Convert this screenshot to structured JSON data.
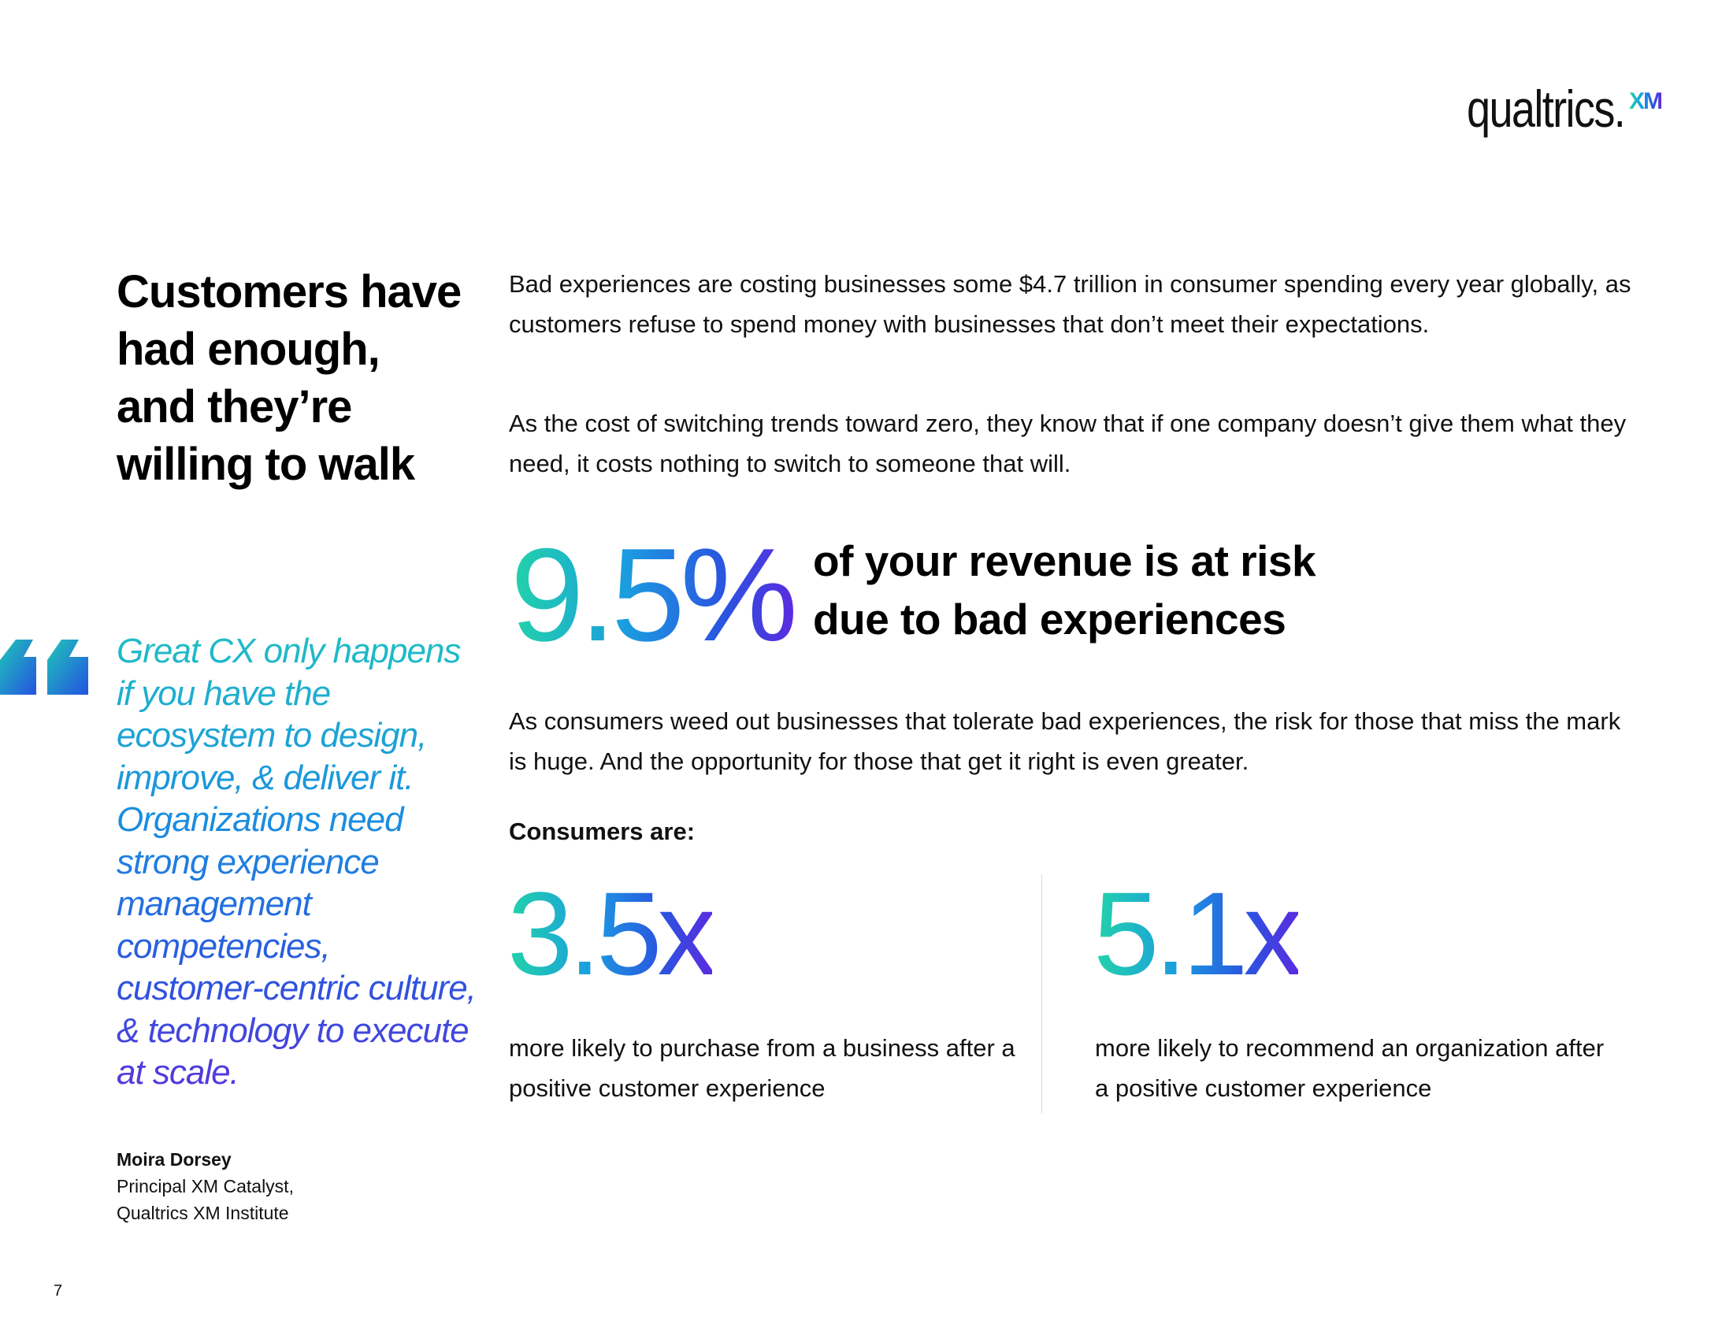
{
  "logo": {
    "wordmark": "qualtrics.",
    "superscript": "XM"
  },
  "headline": "Customers have had enough, and they’re willing to walk",
  "quote": {
    "text": "Great CX only happens if you have the ecosystem to design, improve, & deliver it. Organizations need strong experience management competencies, customer-centric culture, & technology to execute at scale.",
    "author": "Moira Dorsey",
    "title": "Principal XM Catalyst,",
    "organization": "Qualtrics XM Institute"
  },
  "body": {
    "paragraph1": "Bad experiences are costing businesses some $4.7 trillion in consumer spending every year globally, as customers refuse to spend money with businesses that don’t meet their expectations.",
    "paragraph2": "As the cost of switching trends toward zero, they know that if one company doesn’t give them what they need, it costs nothing to switch to someone that will.",
    "paragraph3": "As consumers weed out businesses that tolerate bad experiences, the risk for those that miss the mark is huge. And the opportunity for those that get it right is even greater."
  },
  "highlight_stat": {
    "value": "9.5%",
    "text": "of your revenue is at risk due to bad experiences"
  },
  "consumers": {
    "label": "Consumers are:",
    "stats": [
      {
        "value": "3.5x",
        "description": "more likely to purchase from a business after a positive customer experience"
      },
      {
        "value": "5.1x",
        "description": "more likely to recommend an organization after a positive customer experience"
      }
    ]
  },
  "page_number": "7",
  "colors": {
    "gradient_start": "#22d3a8",
    "gradient_mid": "#1b9ee0",
    "gradient_end": "#5a2be0",
    "text": "#111111"
  }
}
